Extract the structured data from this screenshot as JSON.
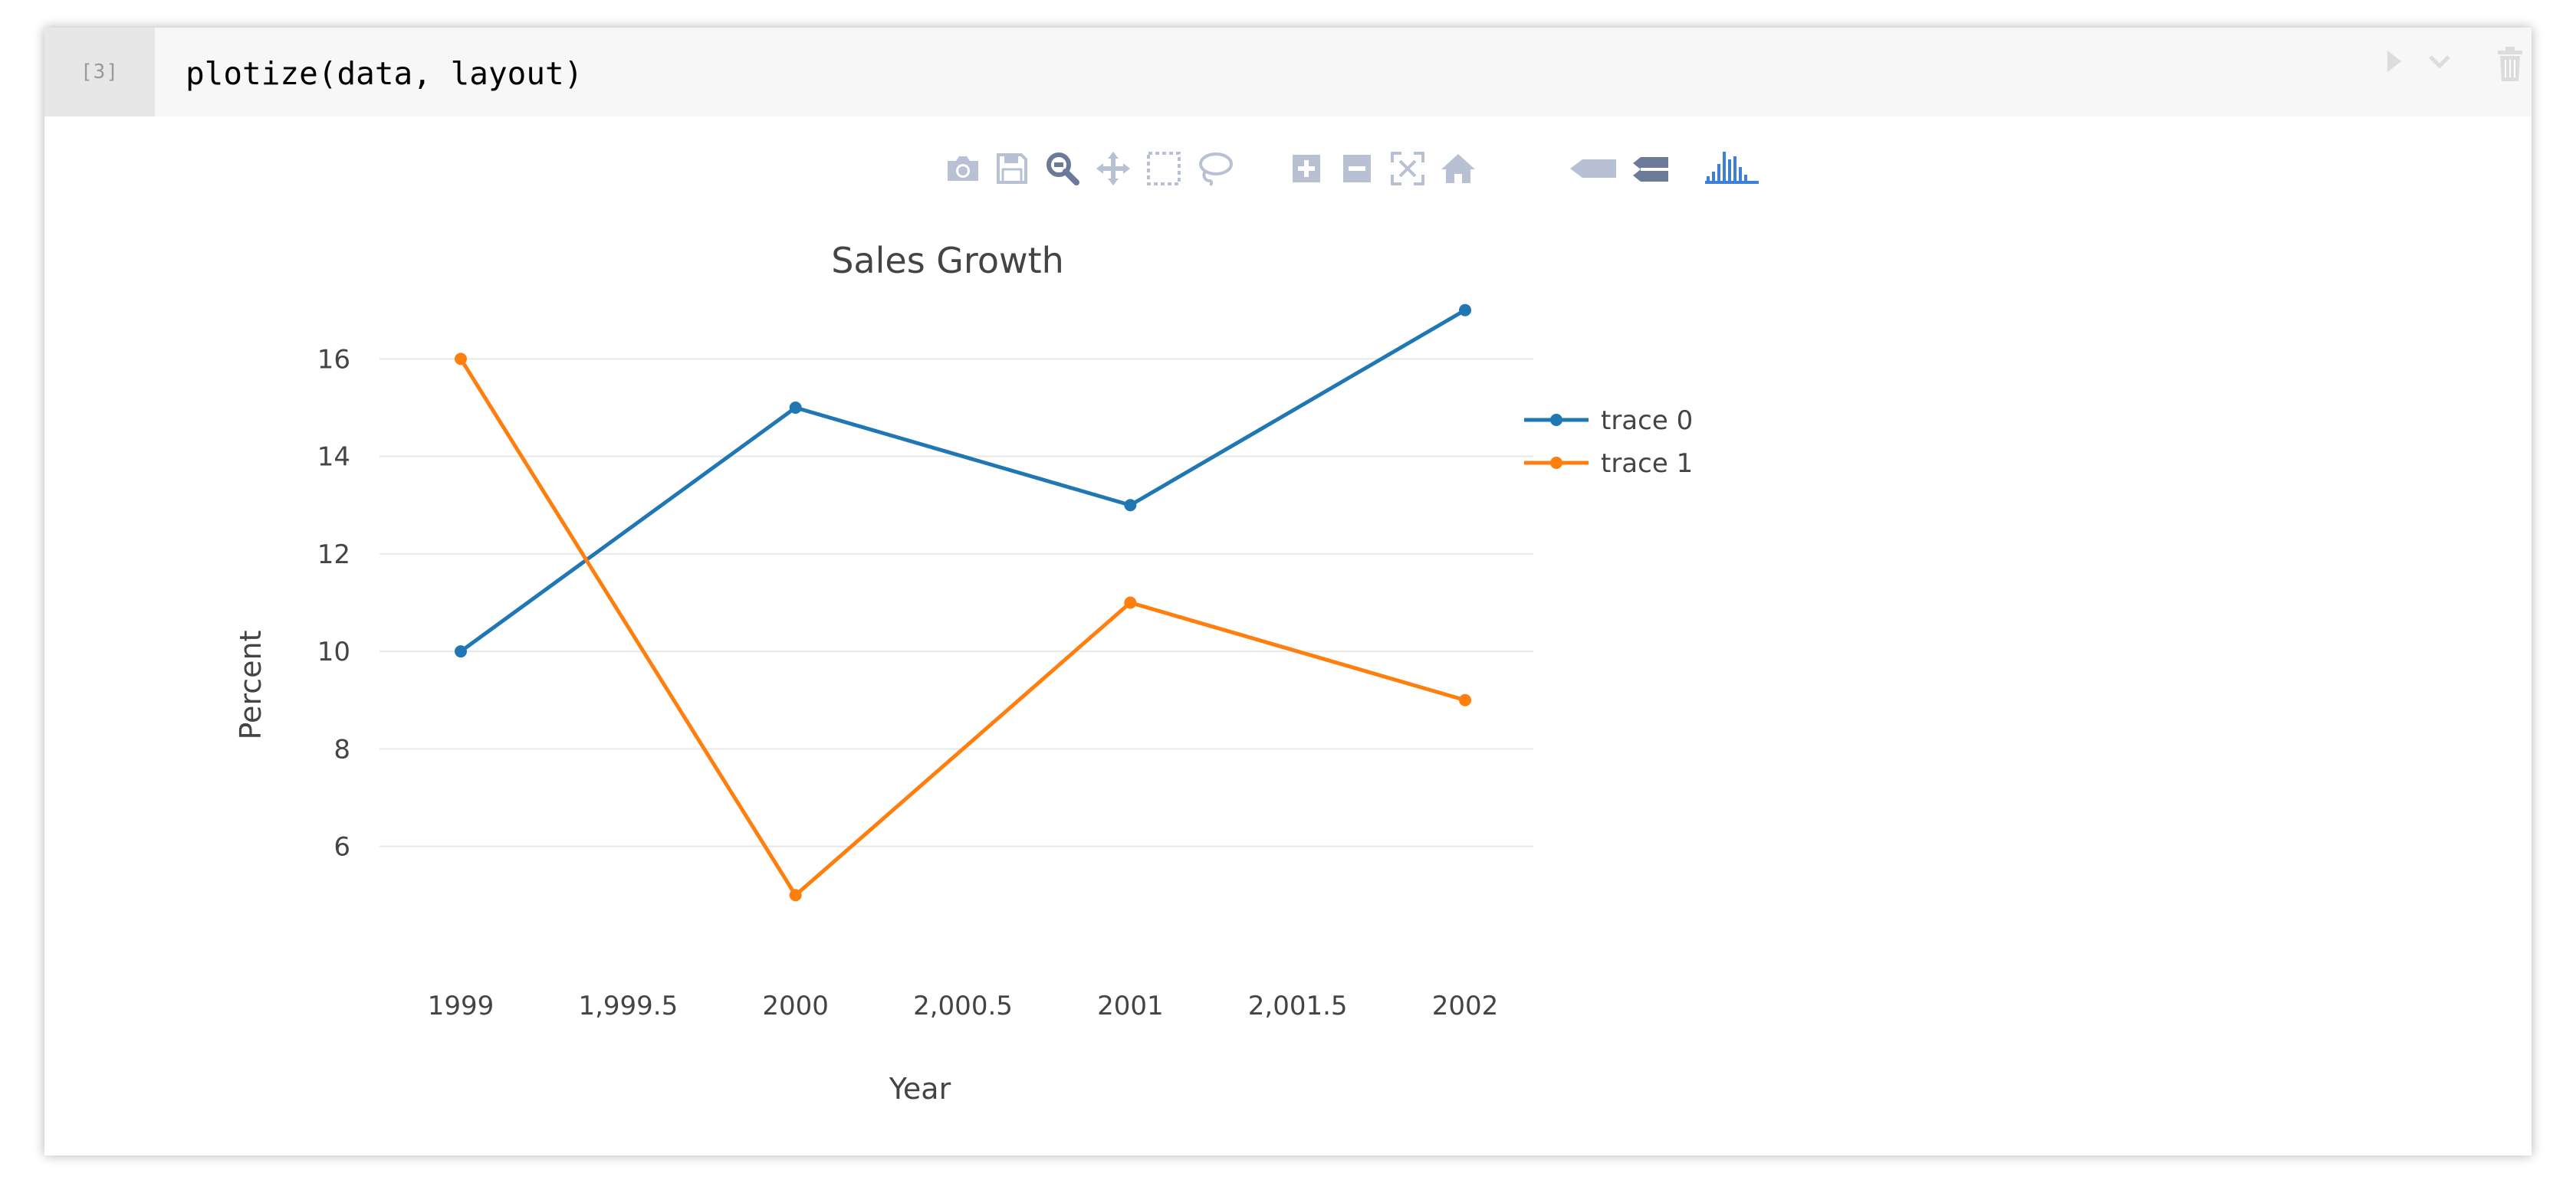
{
  "cell": {
    "prompt": "[3]",
    "code": "plotize(data, layout)"
  },
  "cell_toolbar": {
    "icons": [
      "run-icon",
      "chevron-down-icon",
      "trash-icon"
    ]
  },
  "modebar": {
    "icons": [
      "camera-icon",
      "save-icon",
      "zoom-icon",
      "pan-icon",
      "box-select-icon",
      "lasso-select-icon",
      "zoom-in-icon",
      "zoom-out-icon",
      "autoscale-icon",
      "reset-axes-icon",
      "hover-closest-icon",
      "hover-compare-icon",
      "plotly-logo-icon"
    ]
  },
  "colors": {
    "trace0": "#1f77b4",
    "trace1": "#ff7f0e",
    "grid": "#e8e8e8",
    "text": "#444444",
    "modebar_icon": "#b8c0d4",
    "modebar_active": "#6b7a99",
    "plotly_logo": "#3d7fd9"
  },
  "chart_data": {
    "type": "line",
    "title": "Sales Growth",
    "xlabel": "Year",
    "ylabel": "Percent",
    "xlim": [
      1999,
      2002
    ],
    "ylim": [
      4.8,
      17.2
    ],
    "xticks": [
      1999,
      1999.5,
      2000,
      2000.5,
      2001,
      2001.5,
      2002
    ],
    "xtick_labels": [
      "1999",
      "1,999.5",
      "2000",
      "2,000.5",
      "2001",
      "2,001.5",
      "2002"
    ],
    "yticks": [
      6,
      8,
      10,
      12,
      14,
      16
    ],
    "yticks_labels": [
      "6",
      "8",
      "10",
      "12",
      "14",
      "16"
    ],
    "grid": true,
    "legend_position": "top-right",
    "series": [
      {
        "name": "trace 0",
        "x": [
          1999,
          2000,
          2001,
          2002
        ],
        "y": [
          10,
          15,
          13,
          17
        ]
      },
      {
        "name": "trace 1",
        "x": [
          1999,
          2000,
          2001,
          2002
        ],
        "y": [
          16,
          5,
          11,
          9
        ]
      }
    ]
  }
}
